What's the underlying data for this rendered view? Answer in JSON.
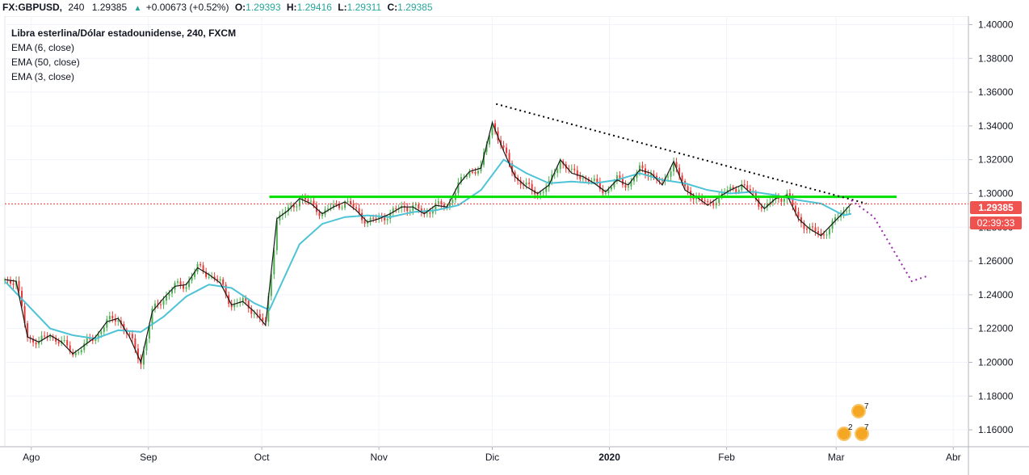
{
  "topbar": {
    "symbol": "FX:GBPUSD,",
    "interval": "240",
    "last": "1.29385",
    "arrow": "▲",
    "change": "+0.00673 (+0.52%)",
    "o_label": "O:",
    "o_value": "1.29393",
    "h_label": "H:",
    "h_value": "1.29416",
    "l_label": "L:",
    "l_value": "1.29311",
    "c_label": "C:",
    "c_value": "1.29385"
  },
  "legend": {
    "title": "Libra esterlina/Dólar estadounidense, 240, FXCM",
    "studies": [
      "EMA (6, close)",
      "EMA (50, close)",
      "EMA (3, close)"
    ]
  },
  "price_tag": "1.29385",
  "countdown": "02:39:33",
  "events": {
    "flag_top_num": "7",
    "flag_bottom_nums": [
      "2",
      "7"
    ]
  },
  "colors": {
    "up": "#26a69a",
    "candle_up": "#4caf50",
    "candle_down": "#e53935",
    "ema_slow": "#4dc3d6",
    "ema_fast": "#1a1a1a",
    "support": "#00e000",
    "last_price_line": "#e53935",
    "projection": "#9c27b0",
    "trendline": "#000000"
  },
  "chart_data": {
    "type": "line",
    "subtype": "candlestick with EMA overlays",
    "title": "Libra esterlina/Dólar estadounidense, 240, FXCM",
    "xlabel": "",
    "ylabel": "",
    "x_ticks": [
      "Ago",
      "Sep",
      "Oct",
      "Nov",
      "Dic",
      "2020",
      "Feb",
      "Mar",
      "Abr"
    ],
    "y_ticks": [
      "1.40000",
      "1.38000",
      "1.36000",
      "1.34000",
      "1.32000",
      "1.30000",
      "1.28000",
      "1.26000",
      "1.24000",
      "1.22000",
      "1.20000",
      "1.18000",
      "1.16000"
    ],
    "ylim": [
      1.15,
      1.405
    ],
    "x_unit": "days since 2019-07-25",
    "series": [
      {
        "name": "EMA (3, close)",
        "x": [
          0,
          3,
          6,
          9,
          12,
          15,
          18,
          21,
          24,
          27,
          30,
          33,
          36,
          39,
          42,
          45,
          48,
          51,
          54,
          57,
          60,
          63,
          66,
          69,
          72,
          75,
          78,
          81,
          84,
          87,
          90,
          93,
          96,
          99,
          102,
          105,
          108,
          111,
          114,
          117,
          120,
          123,
          126,
          129,
          132,
          135,
          138,
          141,
          144,
          147,
          150,
          153,
          156,
          159,
          162,
          165,
          168,
          171,
          174,
          177,
          180,
          183,
          186,
          189,
          192,
          195,
          198,
          201,
          204,
          207,
          210,
          213,
          216,
          219,
          222,
          224
        ],
        "values": [
          1.249,
          1.248,
          1.215,
          1.212,
          1.216,
          1.212,
          1.205,
          1.21,
          1.215,
          1.224,
          1.226,
          1.215,
          1.2,
          1.23,
          1.238,
          1.245,
          1.246,
          1.256,
          1.252,
          1.247,
          1.234,
          1.236,
          1.23,
          1.222,
          1.285,
          1.29,
          1.297,
          1.294,
          1.288,
          1.292,
          1.295,
          1.29,
          1.283,
          1.285,
          1.288,
          1.292,
          1.292,
          1.288,
          1.293,
          1.292,
          1.305,
          1.313,
          1.315,
          1.342,
          1.325,
          1.31,
          1.304,
          1.3,
          1.305,
          1.32,
          1.312,
          1.31,
          1.306,
          1.301,
          1.308,
          1.305,
          1.314,
          1.312,
          1.305,
          1.319,
          1.302,
          1.298,
          1.293,
          1.298,
          1.302,
          1.305,
          1.299,
          1.291,
          1.297,
          1.299,
          1.285,
          1.279,
          1.275,
          1.282,
          1.289,
          1.294
        ]
      },
      {
        "name": "EMA (50, close)",
        "x": [
          0,
          6,
          12,
          18,
          24,
          30,
          36,
          42,
          48,
          54,
          60,
          66,
          70,
          78,
          84,
          90,
          96,
          102,
          108,
          114,
          120,
          126,
          132,
          138,
          144,
          150,
          156,
          162,
          168,
          174,
          180,
          186,
          192,
          198,
          204,
          210,
          216,
          222,
          224
        ],
        "values": [
          1.248,
          1.234,
          1.22,
          1.216,
          1.214,
          1.219,
          1.218,
          1.227,
          1.239,
          1.246,
          1.244,
          1.235,
          1.231,
          1.27,
          1.282,
          1.286,
          1.287,
          1.286,
          1.289,
          1.29,
          1.293,
          1.302,
          1.32,
          1.312,
          1.306,
          1.307,
          1.306,
          1.308,
          1.312,
          1.308,
          1.306,
          1.302,
          1.3,
          1.301,
          1.299,
          1.296,
          1.294,
          1.287,
          1.288
        ]
      }
    ],
    "annotations": [
      {
        "type": "horizontal_line",
        "label": "support",
        "value": 1.298,
        "x_start": 70,
        "x_end": 236
      },
      {
        "type": "horizontal_line",
        "label": "last price",
        "value": 1.29385
      },
      {
        "type": "trendline",
        "style": "dotted",
        "points": [
          [
            130,
            1.353
          ],
          [
            228,
            1.294
          ]
        ]
      },
      {
        "type": "projection",
        "style": "dotted",
        "points": [
          [
            224,
            1.296
          ],
          [
            230,
            1.286
          ],
          [
            240,
            1.248
          ],
          [
            244,
            1.251
          ]
        ]
      }
    ]
  }
}
